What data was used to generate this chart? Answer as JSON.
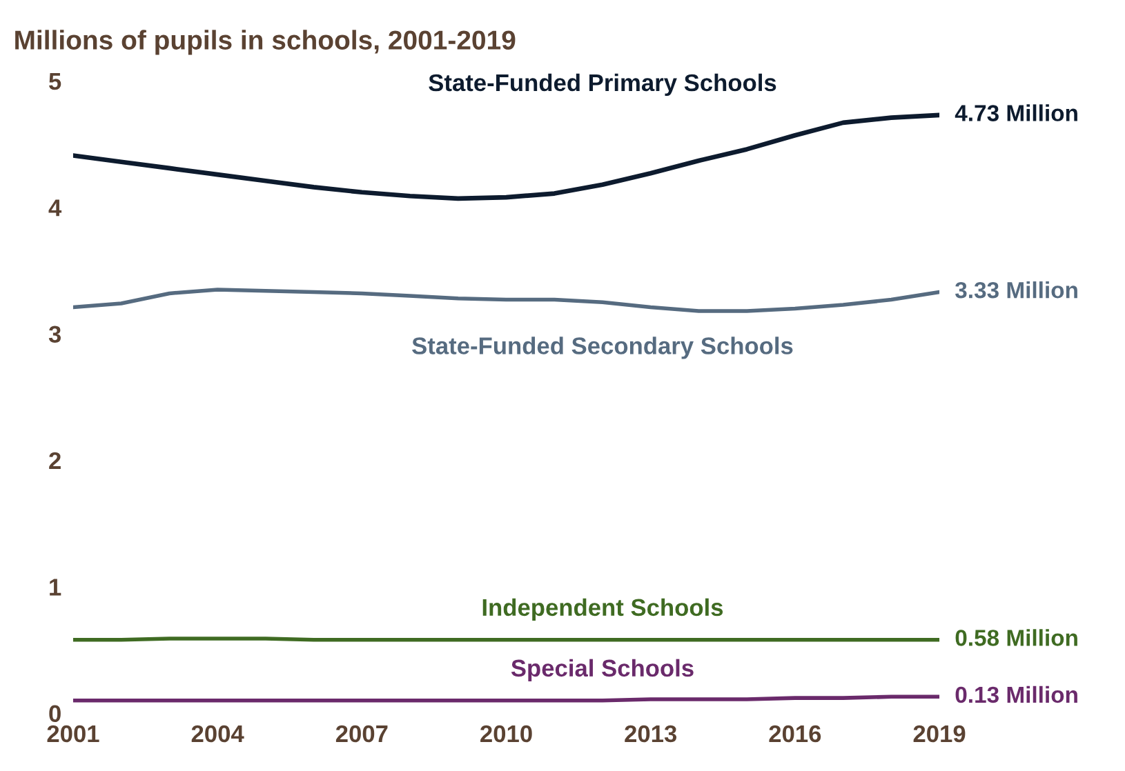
{
  "chart_data": {
    "type": "line",
    "title": "Millions of pupils in schools, 2001-2019",
    "x": [
      2001,
      2002,
      2003,
      2004,
      2005,
      2006,
      2007,
      2008,
      2009,
      2010,
      2011,
      2012,
      2013,
      2014,
      2015,
      2016,
      2017,
      2018,
      2019
    ],
    "series": [
      {
        "name": "State-Funded Primary Schools",
        "color": "#0d1b2e",
        "values": [
          4.41,
          4.36,
          4.31,
          4.26,
          4.21,
          4.16,
          4.12,
          4.09,
          4.07,
          4.08,
          4.11,
          4.18,
          4.27,
          4.37,
          4.46,
          4.57,
          4.67,
          4.71,
          4.73
        ],
        "value_labels": [
          null,
          null,
          null,
          null,
          null,
          null,
          null,
          null,
          null,
          null,
          null,
          null,
          null,
          null,
          null,
          null,
          null,
          null,
          "4.73 Million"
        ]
      },
      {
        "name": "State-Funded Secondary Schools",
        "color": "#566b80",
        "values": [
          3.21,
          3.24,
          3.32,
          3.35,
          3.34,
          3.33,
          3.32,
          3.3,
          3.28,
          3.27,
          3.27,
          3.25,
          3.21,
          3.18,
          3.18,
          3.2,
          3.23,
          3.27,
          3.33
        ],
        "value_labels": [
          null,
          null,
          null,
          null,
          null,
          null,
          null,
          null,
          null,
          null,
          null,
          null,
          null,
          null,
          null,
          null,
          null,
          null,
          "3.33 Million"
        ]
      },
      {
        "name": "Independent Schools",
        "color": "#3f6b22",
        "values": [
          0.58,
          0.58,
          0.59,
          0.59,
          0.59,
          0.58,
          0.58,
          0.58,
          0.58,
          0.58,
          0.58,
          0.58,
          0.58,
          0.58,
          0.58,
          0.58,
          0.58,
          0.58,
          0.58
        ],
        "value_labels": [
          null,
          null,
          null,
          null,
          null,
          null,
          null,
          null,
          null,
          null,
          null,
          null,
          null,
          null,
          null,
          null,
          null,
          null,
          "0.58 Million"
        ]
      },
      {
        "name": "Special Schools",
        "color": "#6a2a6b",
        "values": [
          0.1,
          0.1,
          0.1,
          0.1,
          0.1,
          0.1,
          0.1,
          0.1,
          0.1,
          0.1,
          0.1,
          0.1,
          0.11,
          0.11,
          0.11,
          0.12,
          0.12,
          0.13,
          0.13
        ],
        "value_labels": [
          null,
          null,
          null,
          null,
          null,
          null,
          null,
          null,
          null,
          null,
          null,
          null,
          null,
          null,
          null,
          null,
          null,
          null,
          "0.13 Million"
        ]
      }
    ],
    "xlim": [
      2001,
      2019
    ],
    "xticks": [
      2001,
      2004,
      2007,
      2010,
      2013,
      2016,
      2019
    ],
    "ylim": [
      0,
      5
    ],
    "yticks": [
      0,
      1,
      2,
      3,
      4,
      5
    ],
    "grid": false,
    "legend": false,
    "line_style": "solid",
    "marker": "none"
  }
}
